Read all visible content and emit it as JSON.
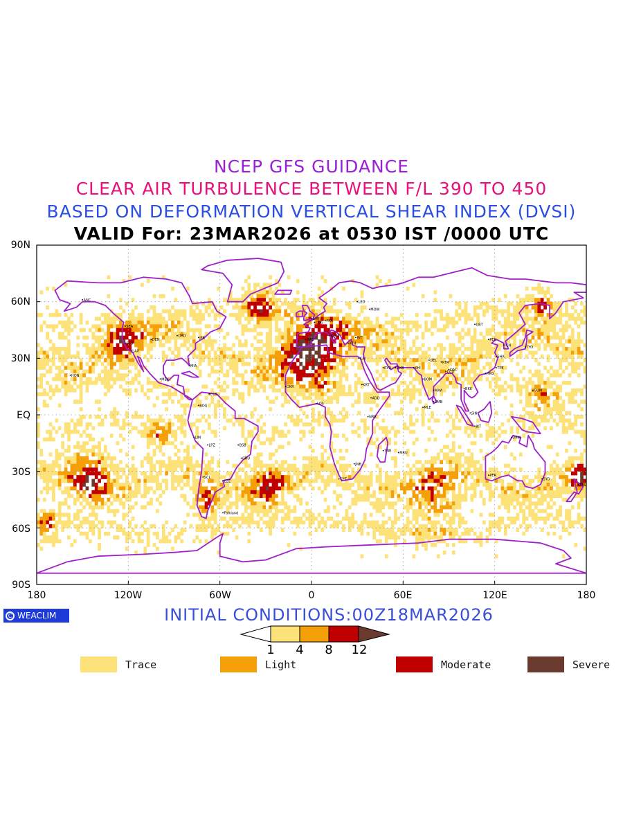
{
  "titles": {
    "line1": "NCEP GFS GUIDANCE",
    "line2": "CLEAR AIR TURBULENCE BETWEEN F/L 390 TO 450",
    "line3": "BASED ON DEFORMATION VERTICAL SHEAR INDEX (DVSI)",
    "line4": "VALID For: 23MAR2026 at 0530 IST /0000 UTC"
  },
  "colors": {
    "title1": "#9b1fd6",
    "title2": "#e8107a",
    "title3": "#2a4ee0",
    "coastline": "#a020c8",
    "trace": "#fde27a",
    "light": "#f5a008",
    "moderate": "#c00000",
    "severe": "#6b3a2e",
    "logo_bg": "#1e3bd8",
    "init_text": "#3a4fd6"
  },
  "axes": {
    "lat_labels": [
      "90N",
      "60N",
      "30N",
      "EQ",
      "30S",
      "60S",
      "90S"
    ],
    "lon_labels": [
      "180",
      "120W",
      "60W",
      "0",
      "60E",
      "120E",
      "180"
    ]
  },
  "logo": {
    "text": "WEACLIM"
  },
  "initial_conditions": "INITIAL CONDITIONS:00Z18MAR2026",
  "colorbar": {
    "ticks": [
      "1",
      "4",
      "8",
      "12"
    ]
  },
  "legend": [
    {
      "label": "Trace",
      "color": "#fde27a"
    },
    {
      "label": "Light",
      "color": "#f5a008"
    },
    {
      "label": "Moderate",
      "color": "#c00000"
    },
    {
      "label": "Severe",
      "color": "#6b3a2e"
    }
  ],
  "stations": [
    "ANC",
    "HON",
    "MEX",
    "SFO",
    "LAX",
    "SEA",
    "DEN",
    "ORD",
    "JFK",
    "MIA",
    "BOG",
    "LIM",
    "LPZ",
    "SCL",
    "EZE",
    "GRU",
    "BSB",
    "CCS",
    "Falkland",
    "LHR",
    "CDG",
    "FRA",
    "MAD",
    "ROM",
    "ATH",
    "IST",
    "CAI",
    "RYD",
    "DXB",
    "KHI",
    "DEL",
    "BOM",
    "MAA",
    "CCU",
    "DAC",
    "KTM",
    "CMB",
    "MLE",
    "BKK",
    "SIN",
    "JKT",
    "HKG",
    "TPE",
    "PEK",
    "SHA",
    "ICN",
    "TYO",
    "UBT",
    "NRB",
    "ADD",
    "KRT",
    "LOS",
    "DKR",
    "JNB",
    "CPT",
    "MRU",
    "TNR",
    "PER",
    "SYD",
    "AKL",
    "DRW",
    "GUM",
    "MOW",
    "LED"
  ]
}
